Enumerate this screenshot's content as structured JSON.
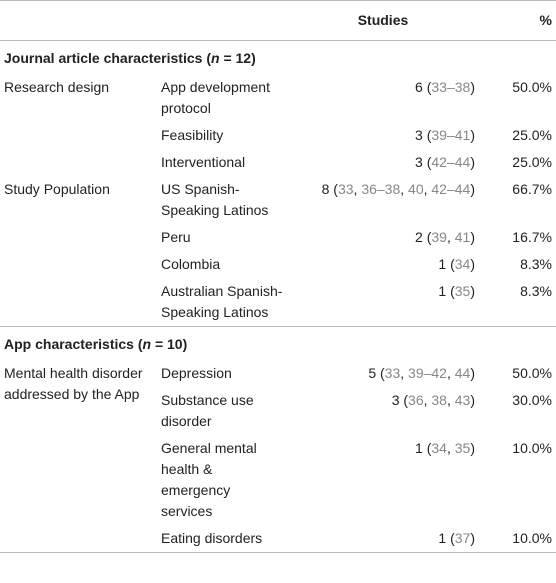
{
  "table": {
    "header": [
      "Studies",
      "%"
    ],
    "sections": [
      {
        "title": [
          "Journal article characteristics (",
          "n",
          " = 12)"
        ],
        "groups": [
          {
            "label": "Research design",
            "rows": [
              {
                "item": "App development protocol",
                "studies": [
                  "6 (",
                  "33–38",
                  ")"
                ],
                "pct": "50.0%"
              },
              {
                "item": "Feasibility",
                "studies": [
                  "3 (",
                  "39–41",
                  ")"
                ],
                "pct": "25.0%"
              },
              {
                "item": "Interventional",
                "studies": [
                  "3 (",
                  "42–44",
                  ")"
                ],
                "pct": "25.0%"
              }
            ]
          },
          {
            "label": "Study Population",
            "rows": [
              {
                "item": "US Spanish-Speaking Latinos",
                "studies": [
                  "8 (",
                  "33",
                  ", ",
                  "36–38",
                  ", ",
                  "40",
                  ", ",
                  "42–44",
                  ")"
                ],
                "pct": "66.7%"
              },
              {
                "item": "Peru",
                "studies": [
                  "2 (",
                  "39",
                  ", ",
                  "41",
                  ")"
                ],
                "pct": "16.7%"
              },
              {
                "item": "Colombia",
                "studies": [
                  "1 (",
                  "34",
                  ")"
                ],
                "pct": "8.3%"
              },
              {
                "item": "Australian Spanish-Speaking Latinos",
                "studies": [
                  "1 (",
                  "35",
                  ")"
                ],
                "pct": "8.3%"
              }
            ]
          }
        ]
      },
      {
        "title": [
          "App characteristics (",
          "n",
          " = 10)"
        ],
        "groups": [
          {
            "label": "Mental health disorder addressed by the App",
            "rows": [
              {
                "item": "Depression",
                "studies": [
                  "5 (",
                  "33",
                  ", ",
                  "39–42",
                  ", ",
                  "44",
                  ")"
                ],
                "pct": "50.0%"
              },
              {
                "item": "Substance use disorder",
                "studies": [
                  "3 (",
                  "36",
                  ", ",
                  "38",
                  ", ",
                  "43",
                  ")"
                ],
                "pct": "30.0%"
              },
              {
                "item": "General mental health & emergency services",
                "studies": [
                  "1 (",
                  "34",
                  ", ",
                  "35",
                  ")"
                ],
                "pct": "10.0%"
              },
              {
                "item": "Eating disorders",
                "studies": [
                  "1 (",
                  "37",
                  ")"
                ],
                "pct": "10.0%"
              }
            ]
          }
        ]
      }
    ]
  }
}
